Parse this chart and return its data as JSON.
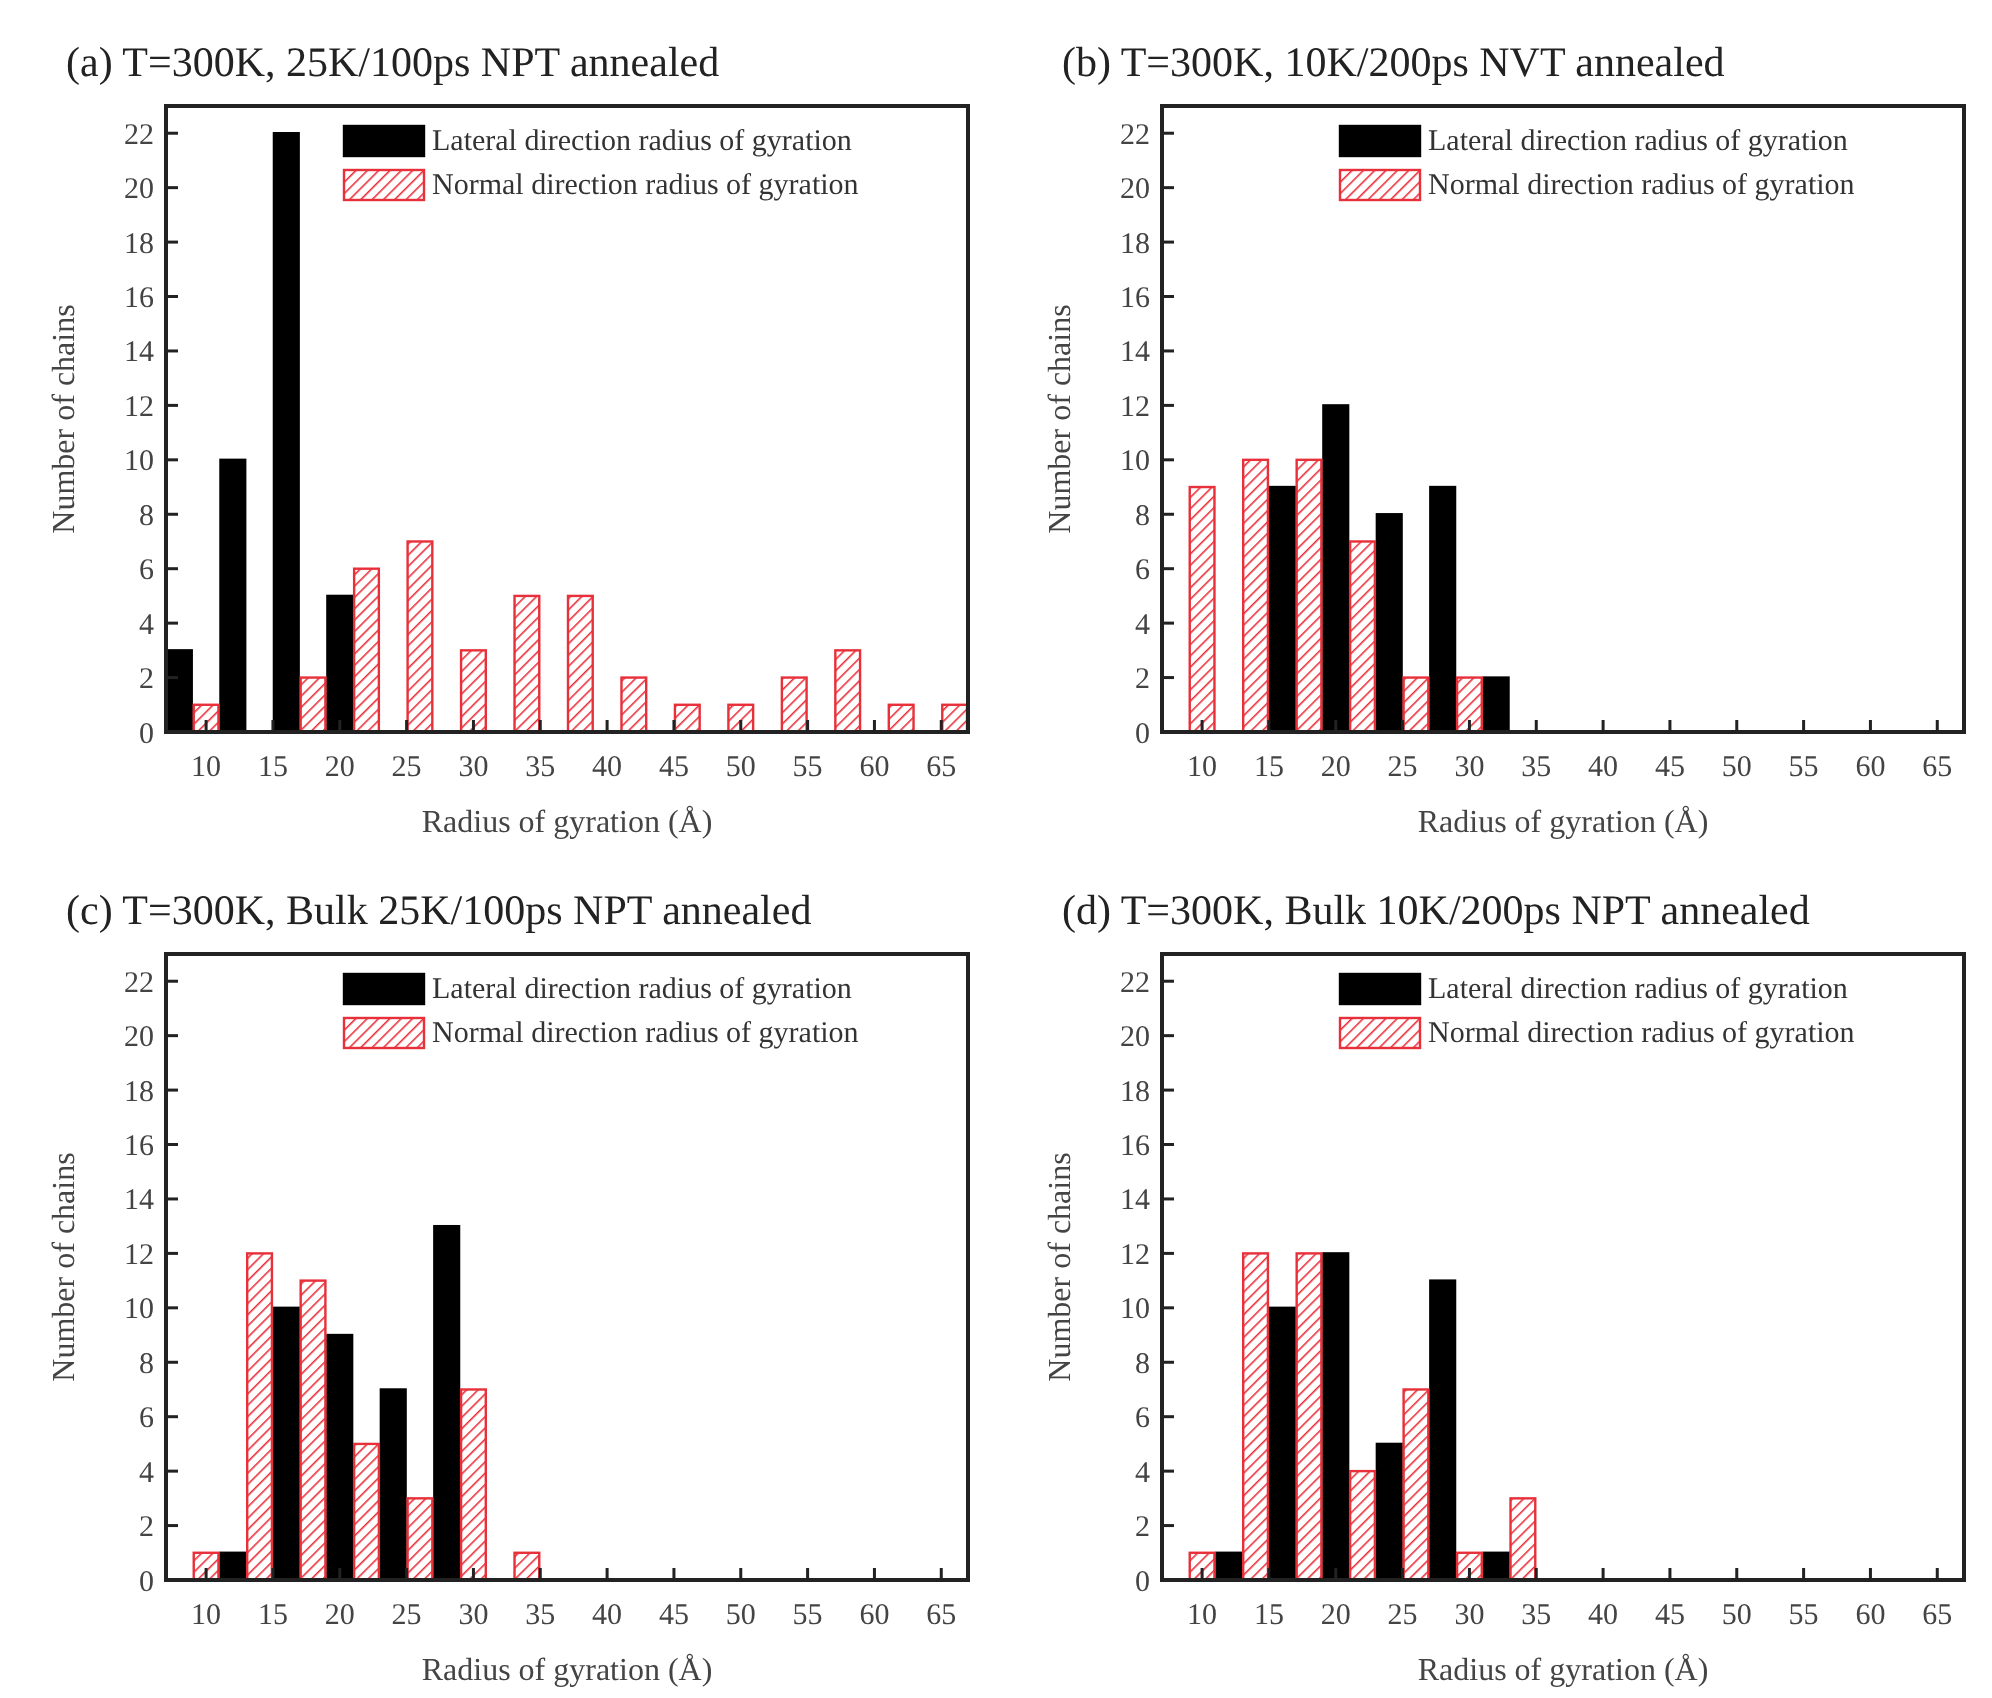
{
  "chart_data": [
    {
      "type": "bar",
      "title": "(a)  T=300K, 25K/100ps NPT annealed",
      "xlabel": "Radius of gyration (Å)",
      "ylabel": "Number of chains",
      "xlim": [
        7,
        67
      ],
      "xticks": [
        10,
        15,
        20,
        25,
        30,
        35,
        40,
        45,
        50,
        55,
        60,
        65
      ],
      "ylim": [
        0,
        23
      ],
      "yticks": [
        0,
        2,
        4,
        6,
        8,
        10,
        12,
        14,
        16,
        18,
        20,
        22
      ],
      "legend": "top right",
      "series": [
        {
          "name": "Lateral direction radius of gyration",
          "color": "#000000",
          "x": [
            8,
            12,
            16,
            20
          ],
          "values": [
            3,
            10,
            22,
            5
          ]
        },
        {
          "name": "Normal direction radius of gyration",
          "color": "#e8303a",
          "x": [
            10,
            18,
            22,
            26,
            30,
            34,
            38,
            42,
            46,
            50,
            54,
            58,
            62,
            66
          ],
          "values": [
            1,
            2,
            6,
            7,
            3,
            5,
            5,
            2,
            1,
            1,
            2,
            3,
            1,
            1
          ]
        }
      ]
    },
    {
      "type": "bar",
      "title": "(b) T=300K, 10K/200ps NVT annealed",
      "xlabel": "Radius of gyration (Å)",
      "ylabel": "Number of chains",
      "xlim": [
        7,
        67
      ],
      "xticks": [
        10,
        15,
        20,
        25,
        30,
        35,
        40,
        45,
        50,
        55,
        60,
        65
      ],
      "ylim": [
        0,
        23
      ],
      "yticks": [
        0,
        2,
        4,
        6,
        8,
        10,
        12,
        14,
        16,
        18,
        20,
        22
      ],
      "legend": "top right",
      "series": [
        {
          "name": "Lateral direction radius of gyration",
          "color": "#000000",
          "x": [
            16,
            20,
            24,
            28,
            32
          ],
          "values": [
            9,
            12,
            8,
            9,
            2
          ]
        },
        {
          "name": "Normal direction radius of gyration",
          "color": "#e8303a",
          "x": [
            10,
            14,
            18,
            22,
            26,
            30
          ],
          "values": [
            9,
            10,
            10,
            7,
            2,
            2
          ]
        }
      ]
    },
    {
      "type": "bar",
      "title": "(c) T=300K, Bulk 25K/100ps NPT annealed",
      "xlabel": "Radius of gyration (Å)",
      "ylabel": "Number of chains",
      "xlim": [
        7,
        67
      ],
      "xticks": [
        10,
        15,
        20,
        25,
        30,
        35,
        40,
        45,
        50,
        55,
        60,
        65
      ],
      "ylim": [
        0,
        23
      ],
      "yticks": [
        0,
        2,
        4,
        6,
        8,
        10,
        12,
        14,
        16,
        18,
        20,
        22
      ],
      "legend": "top right",
      "series": [
        {
          "name": "Lateral direction radius of gyration",
          "color": "#000000",
          "x": [
            12,
            16,
            20,
            24,
            28
          ],
          "values": [
            1,
            10,
            9,
            7,
            13
          ]
        },
        {
          "name": "Normal direction radius of gyration",
          "color": "#e8303a",
          "x": [
            10,
            14,
            18,
            22,
            26,
            30,
            34
          ],
          "values": [
            1,
            12,
            11,
            5,
            3,
            7,
            1
          ]
        }
      ]
    },
    {
      "type": "bar",
      "title": "(d) T=300K, Bulk 10K/200ps NPT annealed",
      "xlabel": "Radius of gyration (Å)",
      "ylabel": "Number of chains",
      "xlim": [
        7,
        67
      ],
      "xticks": [
        10,
        15,
        20,
        25,
        30,
        35,
        40,
        45,
        50,
        55,
        60,
        65
      ],
      "ylim": [
        0,
        23
      ],
      "yticks": [
        0,
        2,
        4,
        6,
        8,
        10,
        12,
        14,
        16,
        18,
        20,
        22
      ],
      "legend": "top right",
      "series": [
        {
          "name": "Lateral direction radius of gyration",
          "color": "#000000",
          "x": [
            12,
            16,
            20,
            24,
            28,
            32
          ],
          "values": [
            1,
            10,
            12,
            5,
            11,
            1
          ]
        },
        {
          "name": "Normal direction radius of gyration",
          "color": "#e8303a",
          "x": [
            10,
            14,
            18,
            22,
            26,
            30,
            34
          ],
          "values": [
            1,
            12,
            12,
            4,
            7,
            1,
            3
          ]
        }
      ]
    }
  ]
}
